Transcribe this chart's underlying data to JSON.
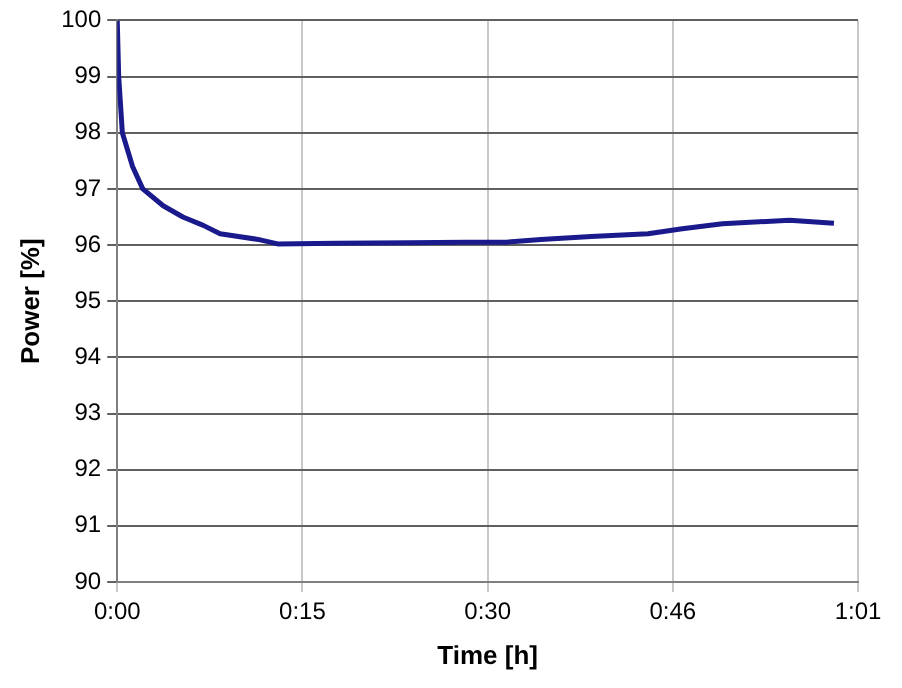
{
  "chart_data": {
    "type": "line",
    "xlabel": "Time [h]",
    "ylabel": "Power [%]",
    "x": [
      0,
      0.002,
      0.007,
      0.021,
      0.035,
      0.063,
      0.09,
      0.118,
      0.141,
      0.193,
      0.22,
      0.3,
      0.4,
      0.478,
      0.533,
      0.581,
      0.65,
      0.728,
      0.775,
      0.83,
      0.922,
      0.983
    ],
    "series": [
      {
        "color": "#1a1a8c",
        "values": [
          100,
          99,
          98,
          97.4,
          97,
          96.7,
          96.5,
          96.35,
          96.2,
          96.1,
          96.02,
          96.03,
          96.04,
          96.05,
          96.05,
          96.1,
          96.15,
          96.2,
          96.29,
          96.38,
          96.44,
          96.39
        ]
      }
    ],
    "xlim": [
      0,
      1.016
    ],
    "xticks": [
      {
        "value": 0,
        "label": "0:00"
      },
      {
        "value": 0.254,
        "label": "0:15"
      },
      {
        "value": 0.508,
        "label": "0:30"
      },
      {
        "value": 0.762,
        "label": "0:46"
      },
      {
        "value": 1.016,
        "label": "1:01"
      }
    ],
    "ylim": [
      90,
      100
    ],
    "yticks": [
      90,
      91,
      92,
      93,
      94,
      95,
      96,
      97,
      98,
      99,
      100
    ],
    "grid": true,
    "legend": false,
    "marker": "none",
    "line_style": "solid"
  }
}
